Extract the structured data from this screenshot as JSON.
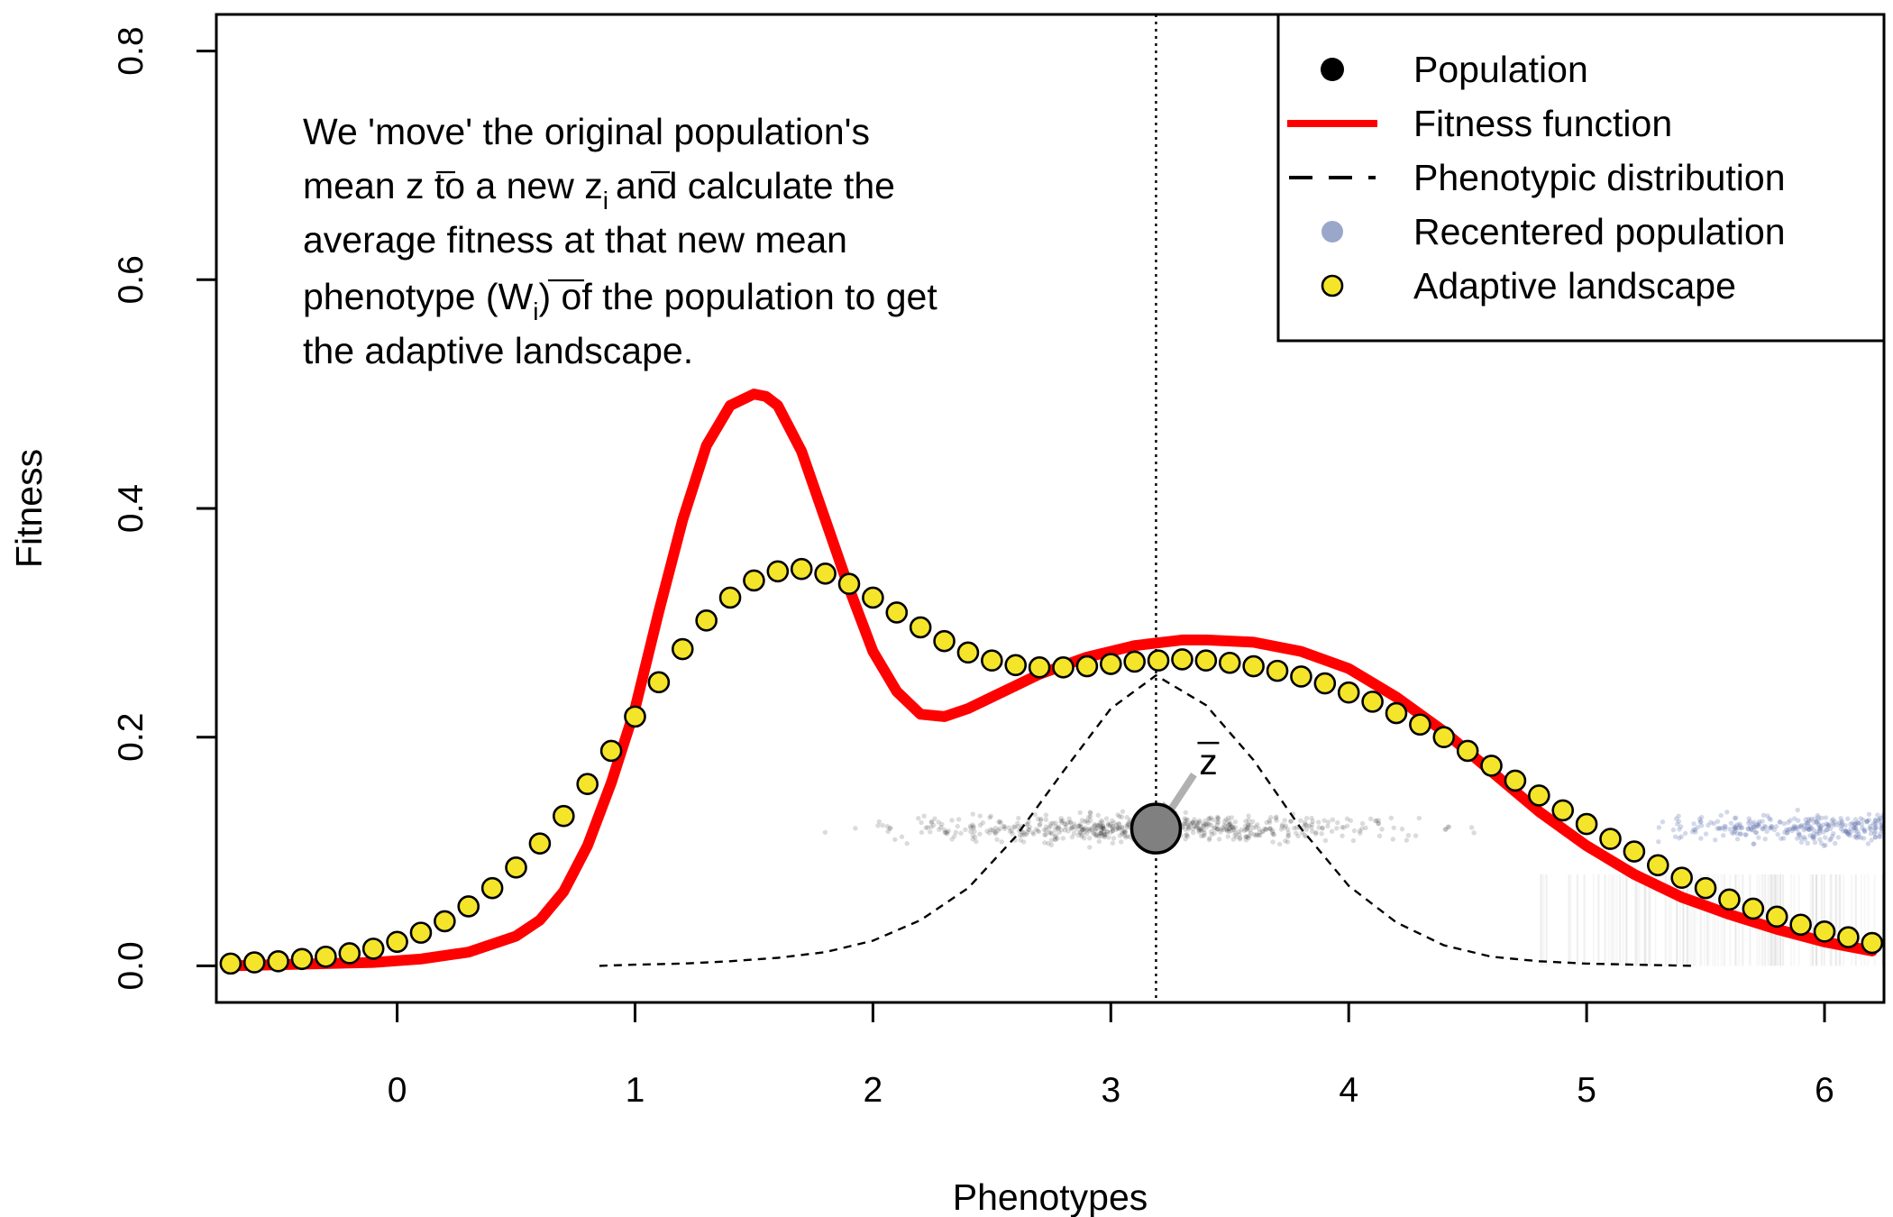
{
  "chart_data": {
    "type": "line",
    "xlabel": "Phenotypes",
    "ylabel": "Fitness",
    "xlim": [
      -0.76,
      6.25
    ],
    "ylim": [
      -0.032,
      0.832
    ],
    "x_ticks": [
      "0",
      "1",
      "2",
      "3",
      "4",
      "5",
      "6"
    ],
    "y_ticks": [
      "0.0",
      "0.2",
      "0.4",
      "0.6",
      "0.8"
    ],
    "population_mean": 3.19,
    "mean_marker": {
      "x": 3.19,
      "y": 0.12,
      "label": "z"
    },
    "annotation": [
      "We 'move' the original population's",
      "mean z to a new z",
      "i",
      "and calculate the",
      "average fitness at that new mean",
      "phenotype (",
      "W",
      "i",
      ") of the population to get",
      "the adaptive landscape."
    ],
    "legend": {
      "placement": "top-right",
      "entries": [
        "Population",
        "Fitness function",
        "Phenotypic distribution",
        "Recentered population",
        "Adaptive landscape"
      ]
    },
    "colors": {
      "fitness_function": "#ff0000",
      "adaptive_landscape_fill": "#f5e52a",
      "population": "#000000",
      "recentered_population": "#7a8db5",
      "phenotypic_distribution": "#000000"
    },
    "series": [
      {
        "name": "Fitness function",
        "x": [
          -0.7,
          -0.5,
          -0.3,
          -0.1,
          0.1,
          0.3,
          0.5,
          0.6,
          0.7,
          0.8,
          0.9,
          1.0,
          1.1,
          1.2,
          1.3,
          1.4,
          1.5,
          1.55,
          1.6,
          1.7,
          1.8,
          1.9,
          2.0,
          2.1,
          2.2,
          2.3,
          2.4,
          2.5,
          2.7,
          2.9,
          3.1,
          3.3,
          3.4,
          3.6,
          3.8,
          4.0,
          4.2,
          4.4,
          4.6,
          4.8,
          5.0,
          5.2,
          5.4,
          5.6,
          5.8,
          6.0,
          6.2
        ],
        "y": [
          0.0,
          0.001,
          0.002,
          0.003,
          0.006,
          0.012,
          0.026,
          0.04,
          0.065,
          0.105,
          0.16,
          0.225,
          0.31,
          0.39,
          0.455,
          0.49,
          0.5,
          0.498,
          0.49,
          0.45,
          0.39,
          0.33,
          0.275,
          0.24,
          0.22,
          0.218,
          0.225,
          0.235,
          0.255,
          0.27,
          0.28,
          0.285,
          0.285,
          0.283,
          0.275,
          0.26,
          0.235,
          0.205,
          0.17,
          0.135,
          0.105,
          0.08,
          0.06,
          0.045,
          0.032,
          0.021,
          0.013
        ]
      },
      {
        "name": "Adaptive landscape",
        "x": [
          -0.7,
          -0.6,
          -0.5,
          -0.4,
          -0.3,
          -0.2,
          -0.1,
          0.0,
          0.1,
          0.2,
          0.3,
          0.4,
          0.5,
          0.6,
          0.7,
          0.8,
          0.9,
          1.0,
          1.1,
          1.2,
          1.3,
          1.4,
          1.5,
          1.6,
          1.7,
          1.8,
          1.9,
          2.0,
          2.1,
          2.2,
          2.3,
          2.4,
          2.5,
          2.6,
          2.7,
          2.8,
          2.9,
          3.0,
          3.1,
          3.2,
          3.3,
          3.4,
          3.5,
          3.6,
          3.7,
          3.8,
          3.9,
          4.0,
          4.1,
          4.2,
          4.3,
          4.4,
          4.5,
          4.6,
          4.7,
          4.8,
          4.9,
          5.0,
          5.1,
          5.2,
          5.3,
          5.4,
          5.5,
          5.6,
          5.7,
          5.8,
          5.9,
          6.0,
          6.1,
          6.2
        ],
        "y": [
          0.002,
          0.003,
          0.004,
          0.006,
          0.008,
          0.011,
          0.015,
          0.021,
          0.029,
          0.039,
          0.052,
          0.068,
          0.086,
          0.107,
          0.131,
          0.159,
          0.188,
          0.218,
          0.248,
          0.277,
          0.302,
          0.322,
          0.337,
          0.345,
          0.347,
          0.343,
          0.334,
          0.322,
          0.309,
          0.296,
          0.284,
          0.274,
          0.267,
          0.263,
          0.261,
          0.261,
          0.262,
          0.264,
          0.266,
          0.267,
          0.268,
          0.267,
          0.265,
          0.262,
          0.258,
          0.253,
          0.247,
          0.239,
          0.231,
          0.221,
          0.211,
          0.2,
          0.188,
          0.175,
          0.162,
          0.149,
          0.136,
          0.124,
          0.111,
          0.1,
          0.088,
          0.077,
          0.068,
          0.058,
          0.05,
          0.043,
          0.036,
          0.03,
          0.025,
          0.02
        ]
      },
      {
        "name": "Phenotypic distribution",
        "x": [
          0.85,
          1.0,
          1.2,
          1.4,
          1.6,
          1.8,
          2.0,
          2.2,
          2.4,
          2.6,
          2.8,
          3.0,
          3.19,
          3.4,
          3.6,
          3.8,
          4.0,
          4.2,
          4.4,
          4.6,
          4.8,
          5.0,
          5.2,
          5.45
        ],
        "y": [
          0.0,
          0.001,
          0.002,
          0.004,
          0.007,
          0.012,
          0.022,
          0.04,
          0.068,
          0.113,
          0.17,
          0.225,
          0.254,
          0.228,
          0.18,
          0.12,
          0.07,
          0.038,
          0.018,
          0.008,
          0.004,
          0.002,
          0.001,
          0.0
        ]
      }
    ]
  }
}
